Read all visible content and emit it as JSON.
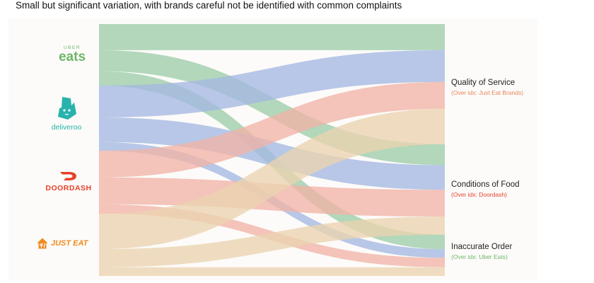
{
  "subtitle": "Small but significant variation, with brands careful not be identified with common complaints",
  "brands": {
    "ubereats_small": "UBER",
    "ubereats_big": "eats",
    "deliveroo": "deliveroo",
    "doordash": "DOORDASH",
    "justeat": "JUST EAT"
  },
  "complaints": [
    {
      "title": "Quality of Service",
      "sub": "(Over idx: Just Eat Brands)",
      "sub_color": "#e8845c"
    },
    {
      "title": "Conditions of Food",
      "sub": "(Over idx: Doordash)",
      "sub_color": "#e6412a"
    },
    {
      "title": "Inaccurate Order",
      "sub": "(Over idx: Uber Eats)",
      "sub_color": "#6fb56a"
    }
  ],
  "colors": {
    "uber_eats": "#9ccda9",
    "deliveroo": "#a4b8e2",
    "doordash": "#f1b3a6",
    "just_eat": "#ead4b0"
  },
  "chart_data": {
    "type": "sankey",
    "sources": [
      "Uber Eats",
      "Deliveroo",
      "DoorDash",
      "Just Eat"
    ],
    "targets": [
      "Quality of Service",
      "Conditions of Food",
      "Inaccurate Order"
    ],
    "flows": [
      {
        "source": "Uber Eats",
        "target": "Quality of Service",
        "value": 36
      },
      {
        "source": "Uber Eats",
        "target": "Conditions of Food",
        "value": 29
      },
      {
        "source": "Uber Eats",
        "target": "Inaccurate Order",
        "value": 20
      },
      {
        "source": "Deliveroo",
        "target": "Quality of Service",
        "value": 44
      },
      {
        "source": "Deliveroo",
        "target": "Conditions of Food",
        "value": 34
      },
      {
        "source": "Deliveroo",
        "target": "Inaccurate Order",
        "value": 12
      },
      {
        "source": "DoorDash",
        "target": "Quality of Service",
        "value": 37
      },
      {
        "source": "DoorDash",
        "target": "Conditions of Food",
        "value": 37
      },
      {
        "source": "DoorDash",
        "target": "Inaccurate Order",
        "value": 13
      },
      {
        "source": "Just Eat",
        "target": "Quality of Service",
        "value": 49
      },
      {
        "source": "Just Eat",
        "target": "Conditions of Food",
        "value": 25
      },
      {
        "source": "Just Eat",
        "target": "Inaccurate Order",
        "value": 12
      }
    ]
  }
}
